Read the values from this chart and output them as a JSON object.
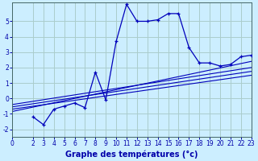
{
  "xlabel": "Graphe des températures (°c)",
  "background_color": "#cceeff",
  "grid_color": "#aacccc",
  "line_color": "#0000bb",
  "xlim": [
    0,
    23
  ],
  "ylim": [
    -2.5,
    6.2
  ],
  "xticks": [
    0,
    2,
    3,
    4,
    5,
    6,
    7,
    8,
    9,
    10,
    11,
    12,
    13,
    14,
    15,
    16,
    17,
    18,
    19,
    20,
    21,
    22,
    23
  ],
  "yticks": [
    -2,
    -1,
    0,
    1,
    2,
    3,
    4,
    5
  ],
  "main_line_x": [
    2,
    3,
    4,
    5,
    6,
    7,
    8,
    9,
    10,
    11,
    12,
    13,
    14,
    15,
    16,
    17,
    18,
    19,
    20,
    21,
    22,
    23
  ],
  "main_line_y": [
    -1.2,
    -1.7,
    -0.7,
    -0.5,
    -0.3,
    -0.6,
    1.7,
    -0.1,
    3.7,
    6.1,
    5.0,
    5.0,
    5.1,
    5.5,
    5.5,
    3.3,
    2.3,
    2.3,
    2.1,
    2.2,
    2.7,
    2.8
  ],
  "ref_lines": [
    {
      "x": [
        0,
        23
      ],
      "y": [
        -0.4,
        2.0
      ]
    },
    {
      "x": [
        0,
        23
      ],
      "y": [
        -0.55,
        1.75
      ]
    },
    {
      "x": [
        0,
        23
      ],
      "y": [
        -0.7,
        1.5
      ]
    },
    {
      "x": [
        0,
        23
      ],
      "y": [
        -0.85,
        2.4
      ]
    }
  ],
  "xlabel_fontsize": 7,
  "tick_fontsize": 5.5,
  "xlabel_bold": true
}
